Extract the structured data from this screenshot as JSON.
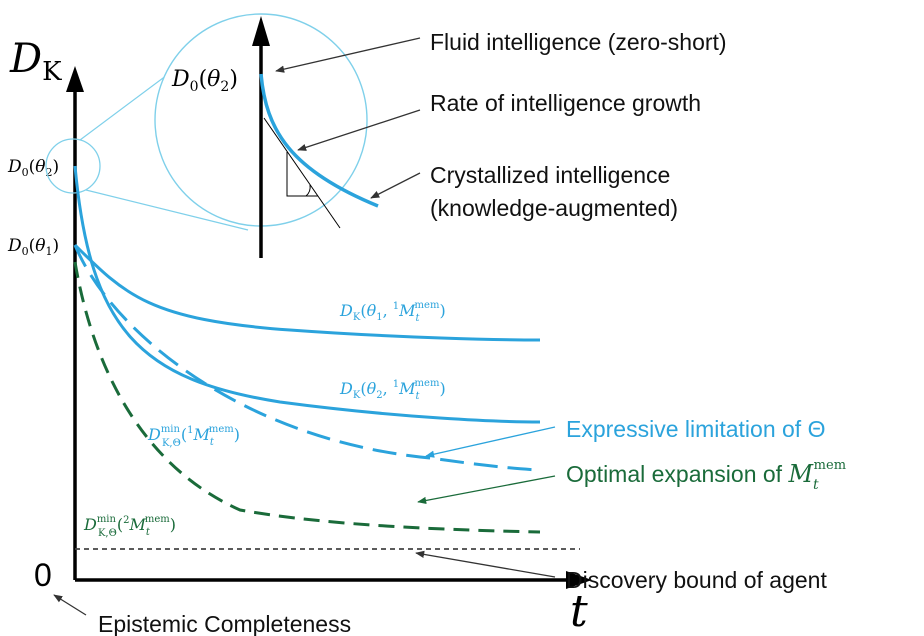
{
  "axes": {
    "y_label": {
      "main": "D",
      "sub": "K"
    },
    "x_label": "t",
    "origin_label": "0"
  },
  "y_ticks": {
    "theta2": {
      "base": "D",
      "sub": "0",
      "paren": "(",
      "var": "θ",
      "var_sub": "2",
      "close": ")"
    },
    "theta1": {
      "base": "D",
      "sub": "0",
      "paren": "(",
      "var": "θ",
      "var_sub": "1",
      "close": ")"
    }
  },
  "inset": {
    "y_label": {
      "base": "D",
      "sub": "0",
      "paren": "(",
      "var": "θ",
      "var_sub": "2",
      "close": ")"
    }
  },
  "annotations": {
    "fluid": "Fluid intelligence (zero-short)",
    "rate": "Rate of intelligence growth",
    "crystal_1": "Crystallized intelligence",
    "crystal_2": "(knowledge-augmented)",
    "expressive": "Expressive limitation of Θ",
    "optimal_prefix": "Optimal expansion of ",
    "optimal_M": "M",
    "optimal_sub": "t",
    "optimal_sup": "mem",
    "discovery": "Discovery bound of agent",
    "epistemic": "Epistemic Completeness"
  },
  "curve_labels": {
    "dk1": {
      "base": "D",
      "sub": "K",
      "open": "(",
      "var": "θ",
      "var_sub": "1",
      "comma": ", ",
      "pre_sup": "1",
      "M": "M",
      "M_sub": "t",
      "M_sup": "mem",
      "close": ")"
    },
    "dk2": {
      "base": "D",
      "sub": "K",
      "open": "(",
      "var": "θ",
      "var_sub": "2",
      "comma": ", ",
      "pre_sup": "1",
      "M": "M",
      "M_sub": "t",
      "M_sup": "mem",
      "close": ")"
    },
    "dmin1": {
      "base": "D",
      "sub": "K,Θ",
      "sup": "min",
      "open": "(",
      "pre_sup": "1",
      "M": "M",
      "M_sub": "t",
      "M_sup": "mem",
      "close": ")"
    },
    "dmin2": {
      "base": "D",
      "sub": "K,Θ",
      "sup": "min",
      "open": "(",
      "pre_sup": "2",
      "M": "M",
      "M_sub": "t",
      "M_sup": "mem",
      "close": ")"
    }
  },
  "colors": {
    "blue": "#2ba3dc",
    "light_blue": "#7fd0ea",
    "green": "#1a6b3a",
    "black": "#000000",
    "gray": "#444444"
  }
}
